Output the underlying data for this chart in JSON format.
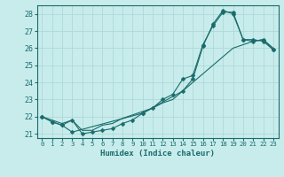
{
  "xlabel": "Humidex (Indice chaleur)",
  "bg_color": "#c8ecec",
  "grid_color": "#b0d8d8",
  "line_color": "#1a6b6b",
  "marker": "D",
  "markersize": 2.5,
  "xlim": [
    -0.5,
    23.5
  ],
  "ylim": [
    20.75,
    28.5
  ],
  "xticks": [
    0,
    1,
    2,
    3,
    4,
    5,
    6,
    7,
    8,
    9,
    10,
    11,
    12,
    13,
    14,
    15,
    16,
    17,
    18,
    19,
    20,
    21,
    22,
    23
  ],
  "yticks": [
    21,
    22,
    23,
    24,
    25,
    26,
    27,
    28
  ],
  "line1_x": [
    0,
    1,
    2,
    3,
    4,
    5,
    6,
    7,
    8,
    9,
    10,
    11,
    12,
    13,
    14,
    15,
    16,
    17,
    18,
    19,
    20,
    21,
    22,
    23
  ],
  "line1_y": [
    22.0,
    21.7,
    21.5,
    21.8,
    21.0,
    21.1,
    21.2,
    21.3,
    21.6,
    21.8,
    22.2,
    22.5,
    23.0,
    23.3,
    24.2,
    24.4,
    26.2,
    27.3,
    28.1,
    28.1,
    26.5,
    26.4,
    26.5,
    25.9
  ],
  "line2_x": [
    0,
    1,
    2,
    3,
    4,
    5,
    6,
    7,
    8,
    9,
    10,
    11,
    12,
    13,
    14,
    15,
    16,
    17,
    18,
    19,
    20,
    21,
    22,
    23
  ],
  "line2_y": [
    22.0,
    21.8,
    21.6,
    21.8,
    21.2,
    21.2,
    21.5,
    21.6,
    21.9,
    22.1,
    22.3,
    22.5,
    22.8,
    23.0,
    23.5,
    24.0,
    24.5,
    25.0,
    25.5,
    26.0,
    26.2,
    26.4,
    26.5,
    26.0
  ],
  "line3_x": [
    0,
    1,
    2,
    3,
    10,
    14,
    15,
    16,
    17,
    18,
    19,
    20,
    21,
    22,
    23
  ],
  "line3_y": [
    22.0,
    21.7,
    21.5,
    21.1,
    22.2,
    23.5,
    24.2,
    26.1,
    27.4,
    28.2,
    28.0,
    26.5,
    26.5,
    26.4,
    25.9
  ]
}
